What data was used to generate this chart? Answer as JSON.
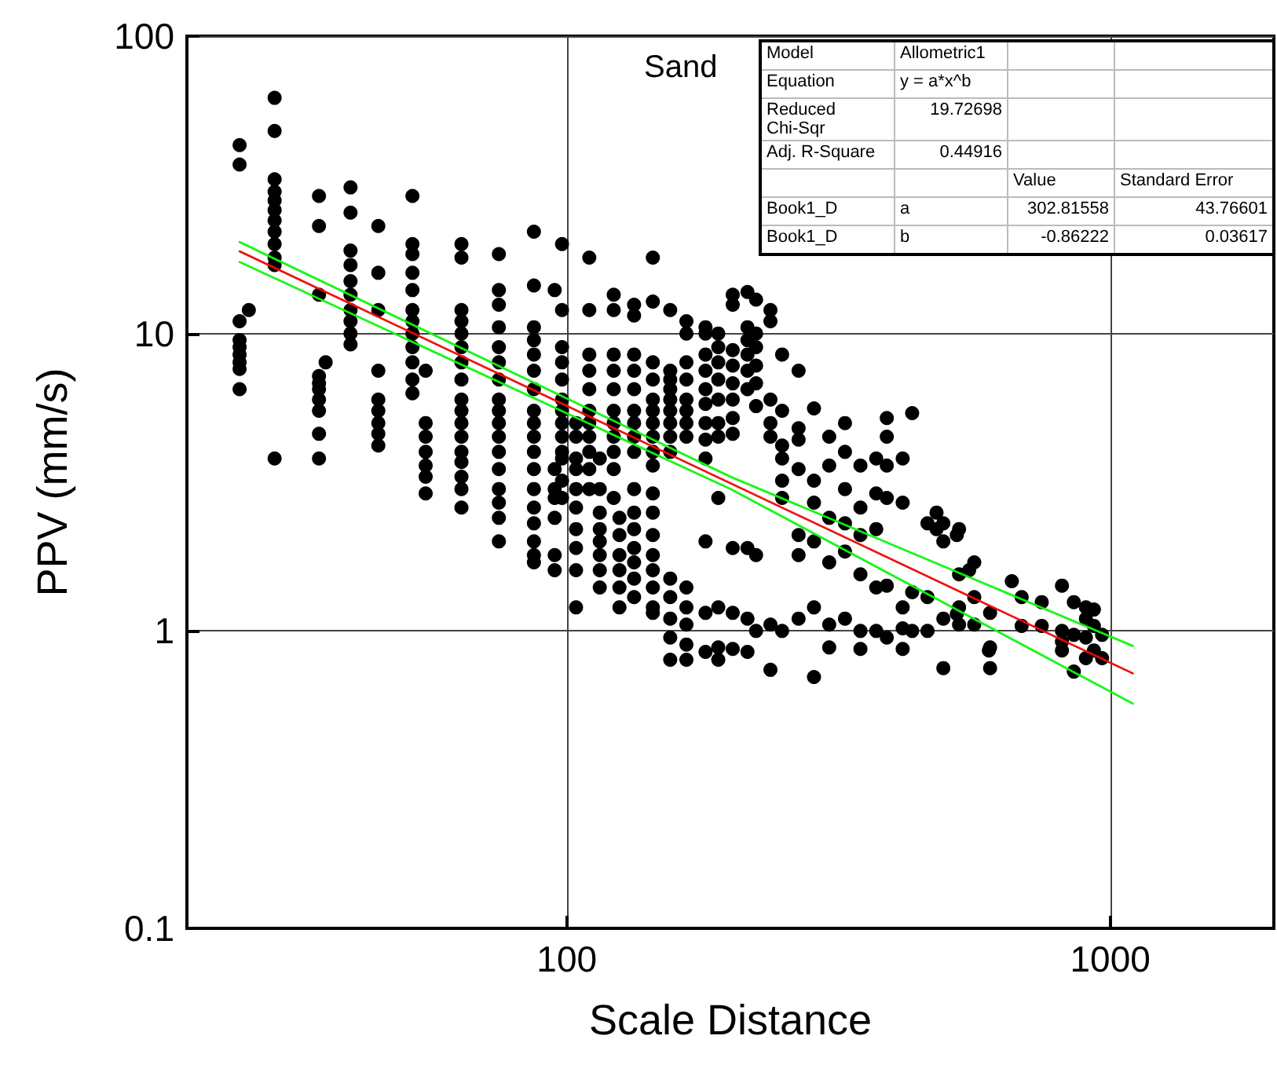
{
  "chart_data": {
    "type": "scatter",
    "title": "Sand",
    "xlabel": "Scale Distance",
    "ylabel": "PPV (mm/s)",
    "log": "xy",
    "grid": true,
    "marker": "circle",
    "xlim": [
      20,
      2000
    ],
    "xticks": [
      100,
      1000
    ],
    "ylim": [
      0.1,
      100
    ],
    "yticks": [
      0.1,
      1,
      10,
      100
    ],
    "annotations": [
      "Model",
      "Allometric1",
      "Equation",
      "y = a*x^b",
      "Reduced Chi-Sqr",
      "19.72698",
      "Adj. R-Square",
      "0.44916",
      "Value",
      "Standard Error",
      "Book1_D",
      "a",
      "302.81558",
      "43.76601",
      "Book1_D",
      "b",
      "-0.86222",
      "0.03617"
    ],
    "series": [
      {
        "color": "#000000",
        "x": [
          25,
          25,
          25,
          25,
          25,
          25,
          25,
          25,
          25,
          26,
          29,
          29,
          29,
          29,
          29,
          29,
          29,
          29,
          29,
          29,
          29,
          29,
          35,
          35,
          35,
          35,
          35,
          35,
          35,
          35,
          35,
          35,
          36,
          40,
          40,
          40,
          40,
          40,
          40,
          40,
          40,
          40,
          40,
          45,
          45,
          45,
          45,
          45,
          45,
          45,
          45,
          45,
          52,
          52,
          52,
          52,
          52,
          52,
          52,
          52,
          52,
          52,
          52,
          52,
          55,
          55,
          55,
          55,
          55,
          55,
          55,
          64,
          64,
          64,
          64,
          64,
          64,
          64,
          64,
          64,
          64,
          64,
          64,
          64,
          64,
          64,
          64,
          64,
          75,
          75,
          75,
          75,
          75,
          75,
          75,
          75,
          75,
          75,
          75,
          75,
          75,
          75,
          75,
          75,
          75,
          87,
          87,
          87,
          87,
          87,
          87,
          87,
          87,
          87,
          87,
          87,
          87,
          87,
          87,
          87,
          87,
          87,
          87,
          95,
          95,
          95,
          95,
          95,
          95,
          95,
          98,
          98,
          98,
          98,
          98,
          98,
          98,
          98,
          98,
          98,
          98,
          98,
          98,
          104,
          104,
          104,
          104,
          104,
          104,
          104,
          104,
          104,
          104,
          110,
          110,
          110,
          110,
          110,
          110,
          110,
          110,
          110,
          110,
          110,
          115,
          115,
          115,
          115,
          115,
          115,
          115,
          115,
          122,
          122,
          122,
          122,
          122,
          122,
          122,
          122,
          122,
          122,
          122,
          125,
          125,
          125,
          125,
          125,
          125,
          133,
          133,
          133,
          133,
          133,
          133,
          133,
          133,
          133,
          133,
          133,
          133,
          133,
          133,
          133,
          133,
          144,
          144,
          144,
          144,
          144,
          144,
          144,
          144,
          144,
          144,
          144,
          144,
          144,
          144,
          144,
          144,
          144,
          144,
          155,
          155,
          155,
          155,
          155,
          155,
          155,
          155,
          155,
          155,
          155,
          155,
          155,
          155,
          166,
          166,
          166,
          166,
          166,
          166,
          166,
          166,
          166,
          166,
          166,
          166,
          166,
          180,
          180,
          180,
          180,
          180,
          180,
          180,
          180,
          180,
          180,
          180,
          180,
          190,
          190,
          190,
          190,
          190,
          190,
          190,
          190,
          190,
          190,
          190,
          202,
          202,
          202,
          202,
          202,
          202,
          202,
          202,
          202,
          202,
          202,
          215,
          215,
          215,
          215,
          215,
          215,
          215,
          215,
          215,
          223,
          223,
          223,
          223,
          223,
          223,
          223,
          223,
          237,
          237,
          237,
          237,
          237,
          237,
          237,
          249,
          249,
          249,
          249,
          249,
          249,
          249,
          267,
          267,
          267,
          267,
          267,
          267,
          267,
          285,
          285,
          285,
          285,
          285,
          285,
          304,
          304,
          304,
          304,
          304,
          304,
          325,
          325,
          325,
          325,
          325,
          325,
          347,
          347,
          347,
          347,
          347,
          347,
          371,
          371,
          371,
          371,
          371,
          388,
          388,
          388,
          388,
          388,
          388,
          415,
          415,
          415,
          415,
          415,
          432,
          432,
          432,
          461,
          461,
          461,
          479,
          479,
          493,
          493,
          493,
          493,
          522,
          522,
          527,
          527,
          527,
          527,
          550,
          562,
          562,
          562,
          598,
          601,
          601,
          601,
          659,
          687,
          687,
          748,
          748,
          815,
          815,
          815,
          815,
          857,
          857,
          857,
          902,
          902,
          902,
          902,
          933,
          933,
          933,
          966,
          966
        ],
        "values": [
          43,
          37,
          11,
          9.5,
          9,
          8.5,
          8,
          7.6,
          6.5,
          12,
          62,
          48,
          33,
          30,
          28,
          26,
          24,
          22,
          20,
          18,
          17,
          3.8,
          29,
          23,
          13.5,
          7.2,
          6.8,
          6.5,
          6,
          5.5,
          4.6,
          3.8,
          8,
          31,
          25.5,
          19,
          17,
          15,
          13.5,
          12,
          11,
          10,
          9.2,
          23,
          16,
          12,
          7.5,
          6,
          5.5,
          5,
          4.6,
          4.2,
          29,
          20,
          18.5,
          16,
          14,
          12,
          11,
          10,
          9,
          8,
          7,
          6.3,
          7.5,
          5,
          4.5,
          4,
          3.6,
          3.3,
          2.9,
          20,
          18,
          12,
          11,
          10,
          9,
          8,
          7,
          6,
          5.5,
          5,
          4.5,
          4,
          3.7,
          3.3,
          3,
          2.6,
          18.5,
          14,
          12.5,
          10.5,
          9,
          8,
          7,
          6,
          5.5,
          5,
          4.5,
          4,
          3.5,
          3,
          2.7,
          2.4,
          2,
          22,
          14.5,
          10.5,
          9.5,
          8.5,
          7.5,
          6.5,
          5.5,
          5,
          4.5,
          4,
          3.5,
          3,
          2.6,
          2.3,
          2,
          1.8,
          1.7,
          14,
          3.5,
          3,
          2.8,
          2.4,
          1.8,
          1.6,
          20,
          12,
          9,
          8,
          7,
          6,
          5.5,
          5,
          4.5,
          4,
          3.8,
          3.2,
          2.8,
          5,
          4.5,
          3.8,
          3.5,
          3,
          2.6,
          2.2,
          1.9,
          1.6,
          1.2,
          18,
          12,
          8.5,
          7.5,
          6.5,
          5.5,
          5,
          4.5,
          4,
          3.5,
          3,
          3.8,
          3,
          2.5,
          2.2,
          2,
          1.8,
          1.6,
          1.4,
          13.5,
          12,
          8.5,
          7.5,
          6.5,
          5.5,
          5,
          4.5,
          4,
          3.5,
          2.8,
          2.4,
          2.1,
          1.8,
          1.6,
          1.4,
          1.2,
          12.5,
          11.5,
          8.5,
          7.5,
          6.5,
          5.5,
          5,
          4.5,
          4,
          3,
          2.5,
          2.2,
          1.9,
          1.7,
          1.5,
          1.3,
          18,
          12.8,
          8,
          7,
          6,
          5.5,
          5,
          4.5,
          4,
          3.6,
          2.9,
          2.5,
          2.1,
          1.8,
          1.6,
          1.4,
          1.2,
          1.15,
          12,
          7.5,
          7,
          6.5,
          6,
          5.5,
          5,
          4.5,
          4,
          1.5,
          1.3,
          1.1,
          0.95,
          0.8,
          11,
          10,
          8,
          7,
          6,
          5.5,
          5,
          4.5,
          1.4,
          1.2,
          1.05,
          0.9,
          0.8,
          10.5,
          10,
          8.5,
          7.5,
          6.5,
          5.8,
          5,
          4.4,
          3.8,
          2,
          1.15,
          0.85,
          10,
          9,
          8,
          7,
          6,
          5,
          4.5,
          2.8,
          1.2,
          0.88,
          0.8,
          13.5,
          12.5,
          8.8,
          7.8,
          6.8,
          6,
          5.2,
          4.6,
          1.9,
          1.15,
          0.87,
          13.8,
          10.5,
          9.5,
          8.5,
          7.5,
          6.5,
          1.9,
          1.1,
          0.85,
          13,
          10,
          9,
          7.8,
          6.8,
          5.7,
          1.8,
          1,
          12,
          11,
          6,
          5,
          4.5,
          1.05,
          0.74,
          8.5,
          5.5,
          4.2,
          3.8,
          3.2,
          2.8,
          1,
          7.5,
          4.8,
          4.4,
          3.5,
          2.1,
          1.8,
          1.1,
          5.6,
          3.2,
          2.7,
          2,
          1.2,
          0.7,
          4.5,
          3.6,
          2.4,
          1.7,
          1.05,
          0.88,
          5,
          4,
          3,
          2.3,
          1.85,
          1.1,
          3.6,
          2.6,
          2.1,
          1.55,
          1,
          0.87,
          3.8,
          2.9,
          2.2,
          1.4,
          1,
          5.2,
          4.5,
          3.6,
          2.8,
          1.42,
          0.95,
          3.8,
          2.7,
          1.2,
          1.02,
          0.87,
          5.4,
          1.35,
          1,
          2.3,
          1.3,
          1,
          2.5,
          2.2,
          2.3,
          2,
          1.1,
          0.75,
          2.1,
          1.14,
          2.2,
          1.55,
          1.2,
          1.05,
          1.6,
          1.7,
          1.3,
          1.05,
          0.86,
          1.15,
          0.88,
          0.75,
          1.47,
          1.3,
          1.04,
          1.25,
          1.04,
          1.42,
          1,
          0.92,
          0.86,
          1.25,
          0.97,
          0.73,
          1.2,
          1.1,
          0.95,
          0.81,
          1.18,
          1.04,
          0.86,
          0.97,
          0.81
        ]
      },
      {
        "type": "line",
        "color": "#ff0000",
        "marker": "none",
        "x": [
          25,
          1100
        ],
        "values": [
          18.9,
          0.72
        ]
      },
      {
        "type": "line",
        "color": "#00ff00",
        "marker": "none",
        "x": [
          25,
          200,
          1100
        ],
        "values": [
          20.3,
          3.3,
          0.89
        ]
      },
      {
        "type": "line",
        "color": "#00ff00",
        "marker": "none",
        "x": [
          25,
          200,
          1100
        ],
        "values": [
          17.4,
          3.0,
          0.57
        ]
      }
    ]
  }
}
